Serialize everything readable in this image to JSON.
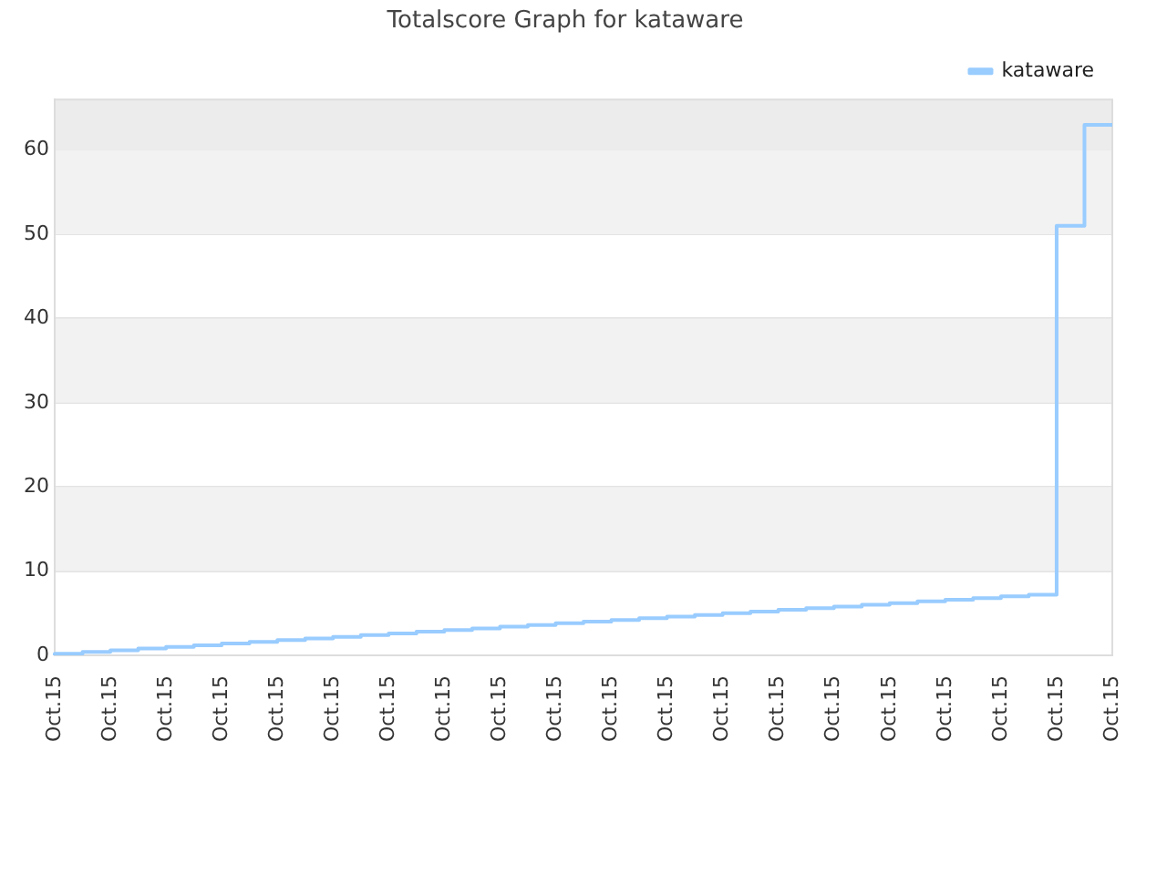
{
  "chart_data": {
    "type": "step",
    "title": "Totalscore Graph for kataware",
    "categories": [
      "Oct.15",
      null,
      "Oct.15",
      null,
      "Oct.15",
      null,
      "Oct.15",
      null,
      "Oct.15",
      null,
      "Oct.15",
      null,
      "Oct.15",
      null,
      "Oct.15",
      null,
      "Oct.15",
      null,
      "Oct.15",
      null,
      "Oct.15",
      null,
      "Oct.15",
      null,
      "Oct.15",
      null,
      "Oct.15",
      null,
      "Oct.15",
      null,
      "Oct.15",
      null,
      "Oct.15",
      null,
      "Oct.15",
      null,
      "Oct.15",
      null,
      "Oct.15"
    ],
    "series": [
      {
        "name": "kataware",
        "color": "#99ccff",
        "values": [
          0,
          0.2,
          0.4,
          0.6,
          0.8,
          1.0,
          1.2,
          1.4,
          1.6,
          1.8,
          2.0,
          2.2,
          2.4,
          2.6,
          2.8,
          3.0,
          3.2,
          3.4,
          3.6,
          3.8,
          4.0,
          4.2,
          4.4,
          4.6,
          4.8,
          5.0,
          5.2,
          5.4,
          5.6,
          5.8,
          6.0,
          6.2,
          6.4,
          6.6,
          6.8,
          7.0,
          7.2,
          51,
          63
        ]
      }
    ],
    "ylim": [
      0,
      66
    ],
    "yticks": [
      0,
      10,
      20,
      30,
      40,
      50,
      60
    ],
    "bands": [
      {
        "axis": "y",
        "from": 10,
        "to": 20,
        "color": "#f2f2f2"
      },
      {
        "axis": "y",
        "from": 30,
        "to": 40,
        "color": "#f2f2f2"
      },
      {
        "axis": "y",
        "from": 50,
        "to": 60,
        "color": "#f2f2f2"
      },
      {
        "axis": "y",
        "from": 60,
        "to": 66,
        "color": "#ececec"
      }
    ],
    "grid": "y",
    "legend": "top right",
    "marker": "none",
    "line_style": "solid"
  }
}
